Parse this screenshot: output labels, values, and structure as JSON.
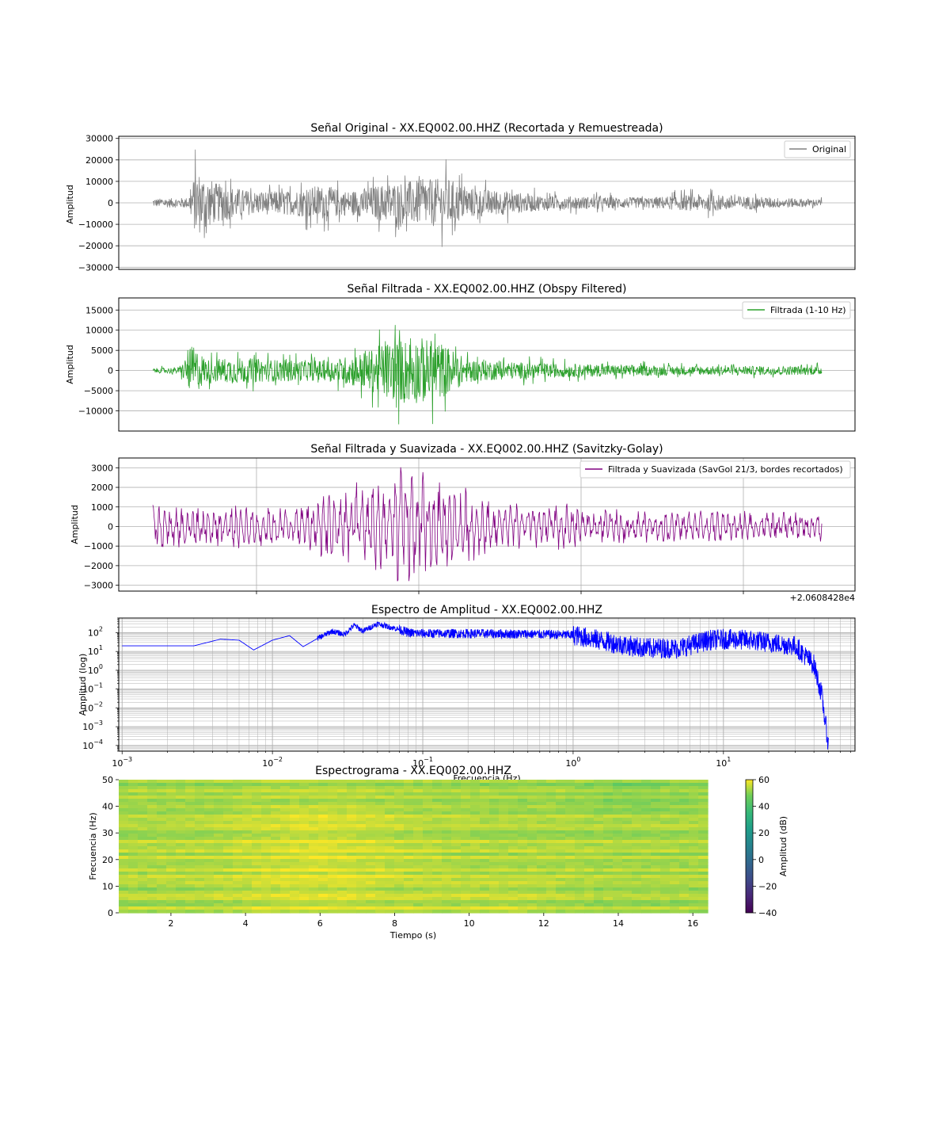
{
  "colors": {
    "original": "#808080",
    "filtered": "#2ca02c",
    "smoothed": "#800080",
    "spectrum": "#0000ff",
    "grid": "#b0b0b0",
    "colormap": "viridis"
  },
  "chart_data": [
    {
      "type": "line",
      "title": "Señal Original - XX.EQ002.00.HHZ (Recortada y Remuestreada)",
      "ylabel": "Amplitud",
      "xlabel": "",
      "ylim": [
        -31000,
        31000
      ],
      "yticks": [
        30000,
        20000,
        10000,
        0,
        -10000,
        -20000,
        -30000
      ],
      "ytick_labels": [
        "30000",
        "20000",
        "10000",
        "0",
        "−10000",
        "−20000",
        "−30000"
      ],
      "grid": "y",
      "legend": "top-right",
      "series": [
        {
          "name": "Original",
          "color": "#808080",
          "envelope": [
            {
              "x": 0.0,
              "y": 3500
            },
            {
              "x": 0.9,
              "y": 4500
            },
            {
              "x": 1.1,
              "y": 28500
            },
            {
              "x": 1.6,
              "y": 17000
            },
            {
              "x": 2.5,
              "y": 10000
            },
            {
              "x": 3.5,
              "y": 10000
            },
            {
              "x": 4.2,
              "y": 15000
            },
            {
              "x": 5.0,
              "y": 10000
            },
            {
              "x": 6.0,
              "y": 17000
            },
            {
              "x": 7.0,
              "y": 20000
            },
            {
              "x": 7.5,
              "y": 21000
            },
            {
              "x": 8.0,
              "y": 13000
            },
            {
              "x": 9.0,
              "y": 10000
            },
            {
              "x": 10.0,
              "y": 6000
            },
            {
              "x": 11.5,
              "y": 5000
            },
            {
              "x": 12.5,
              "y": 4500
            },
            {
              "x": 14.0,
              "y": 7500
            },
            {
              "x": 15.5,
              "y": 5000
            },
            {
              "x": 17.0,
              "y": 3000
            }
          ]
        }
      ]
    },
    {
      "type": "line",
      "title": "Señal Filtrada - XX.EQ002.00.HHZ (Obspy Filtered)",
      "ylabel": "Amplitud",
      "xlabel": "",
      "ylim": [
        -15000,
        18000
      ],
      "yticks": [
        15000,
        10000,
        5000,
        0,
        -5000,
        -10000
      ],
      "ytick_labels": [
        "15000",
        "10000",
        "5000",
        "0",
        "−5000",
        "−10000"
      ],
      "grid": "y",
      "legend": "top-right",
      "series": [
        {
          "name": "Filtrada (1-10 Hz)",
          "color": "#2ca02c",
          "envelope": [
            {
              "x": 0.0,
              "y": 1000
            },
            {
              "x": 0.7,
              "y": 1500
            },
            {
              "x": 1.0,
              "y": 11500
            },
            {
              "x": 1.4,
              "y": 5000
            },
            {
              "x": 2.0,
              "y": 6000
            },
            {
              "x": 3.0,
              "y": 5000
            },
            {
              "x": 4.5,
              "y": 4500
            },
            {
              "x": 5.5,
              "y": 9000
            },
            {
              "x": 6.0,
              "y": 13500
            },
            {
              "x": 6.8,
              "y": 15000
            },
            {
              "x": 7.3,
              "y": 13000
            },
            {
              "x": 8.0,
              "y": 5000
            },
            {
              "x": 9.0,
              "y": 4000
            },
            {
              "x": 10.5,
              "y": 3000
            },
            {
              "x": 12.0,
              "y": 2500
            },
            {
              "x": 14.0,
              "y": 2000
            },
            {
              "x": 17.0,
              "y": 2000
            }
          ]
        }
      ]
    },
    {
      "type": "line",
      "title": "Señal Filtrada y Suavizada - XX.EQ002.00.HHZ (Savitzky-Golay)",
      "ylabel": "Amplitud",
      "xlabel": "",
      "offset_label": "+2.0608428e4",
      "ylim": [
        -3300,
        3500
      ],
      "yticks": [
        3000,
        2000,
        1000,
        0,
        -1000,
        -2000,
        -3000
      ],
      "ytick_labels": [
        "3000",
        "2000",
        "1000",
        "0",
        "−1000",
        "−2000",
        "−3000"
      ],
      "grid": "both",
      "legend": "top-right",
      "series": [
        {
          "name": "Filtrada y Suavizada (SavGol 21/3, bordes recortados)",
          "color": "#800080",
          "envelope": [
            {
              "x": 0.0,
              "y": 1400
            },
            {
              "x": 0.8,
              "y": 1200
            },
            {
              "x": 2.0,
              "y": 1200
            },
            {
              "x": 3.5,
              "y": 1000
            },
            {
              "x": 4.5,
              "y": 2000
            },
            {
              "x": 5.5,
              "y": 2500
            },
            {
              "x": 6.5,
              "y": 3300
            },
            {
              "x": 7.2,
              "y": 2500
            },
            {
              "x": 8.0,
              "y": 2000
            },
            {
              "x": 9.0,
              "y": 1200
            },
            {
              "x": 10.5,
              "y": 1200
            },
            {
              "x": 12.0,
              "y": 900
            },
            {
              "x": 14.0,
              "y": 900
            },
            {
              "x": 17.0,
              "y": 800
            }
          ]
        }
      ]
    },
    {
      "type": "line",
      "title": "Espectro de Amplitud - XX.EQ002.00.HHZ",
      "ylabel": "Amplitud (log)",
      "xlabel": "Frecuencia (Hz)",
      "xscale": "log",
      "yscale": "log",
      "xlim": [
        0.00095,
        75
      ],
      "ylim": [
        5e-05,
        600
      ],
      "xticks": [
        "10^-3",
        "10^-2",
        "10^-1",
        "10^0",
        "10^1"
      ],
      "yticks": [
        "10^-4",
        "10^-3",
        "10^-2",
        "10^-1",
        "10^0",
        "10^1",
        "10^2"
      ],
      "grid": "both",
      "series": [
        {
          "name": "",
          "color": "#0000ff",
          "points": [
            {
              "x": 0.001,
              "y": 20
            },
            {
              "x": 0.003,
              "y": 20
            },
            {
              "x": 0.0045,
              "y": 45
            },
            {
              "x": 0.006,
              "y": 40
            },
            {
              "x": 0.0075,
              "y": 12
            },
            {
              "x": 0.01,
              "y": 40
            },
            {
              "x": 0.013,
              "y": 70
            },
            {
              "x": 0.016,
              "y": 18
            },
            {
              "x": 0.02,
              "y": 50
            },
            {
              "x": 0.025,
              "y": 120
            },
            {
              "x": 0.03,
              "y": 80
            },
            {
              "x": 0.035,
              "y": 250
            },
            {
              "x": 0.04,
              "y": 120
            },
            {
              "x": 0.05,
              "y": 300
            },
            {
              "x": 0.06,
              "y": 200
            },
            {
              "x": 0.07,
              "y": 150
            },
            {
              "x": 0.08,
              "y": 100
            },
            {
              "x": 0.1,
              "y": 90
            },
            {
              "x": 0.2,
              "y": 90
            },
            {
              "x": 0.5,
              "y": 85
            },
            {
              "x": 1.0,
              "y": 75
            },
            {
              "x": 2.0,
              "y": 25
            },
            {
              "x": 3.0,
              "y": 15
            },
            {
              "x": 5.0,
              "y": 15
            },
            {
              "x": 8.0,
              "y": 40
            },
            {
              "x": 10.0,
              "y": 45
            },
            {
              "x": 15.0,
              "y": 40
            },
            {
              "x": 20.0,
              "y": 30
            },
            {
              "x": 30.0,
              "y": 20
            },
            {
              "x": 40.0,
              "y": 2
            },
            {
              "x": 45.0,
              "y": 0.05
            },
            {
              "x": 48.0,
              "y": 0.001
            },
            {
              "x": 50.0,
              "y": 0.0001
            }
          ]
        }
      ]
    },
    {
      "type": "heatmap",
      "title": "Espectrograma - XX.EQ002.00.HHZ",
      "xlabel": "Tiempo (s)",
      "ylabel": "Frecuencia (Hz)",
      "xlim": [
        0.6,
        16.4
      ],
      "ylim": [
        0,
        50
      ],
      "xticks": [
        "2",
        "4",
        "6",
        "8",
        "10",
        "12",
        "14",
        "16"
      ],
      "yticks": [
        "0",
        "10",
        "20",
        "30",
        "40",
        "50"
      ],
      "colormap": "viridis",
      "colorbar": {
        "label": "Amplitud (dB)",
        "range": [
          -40,
          60
        ],
        "ticks": [
          "−40",
          "−20",
          "0",
          "20",
          "40",
          "60"
        ]
      },
      "value_range_observed": [
        30,
        60
      ]
    }
  ]
}
